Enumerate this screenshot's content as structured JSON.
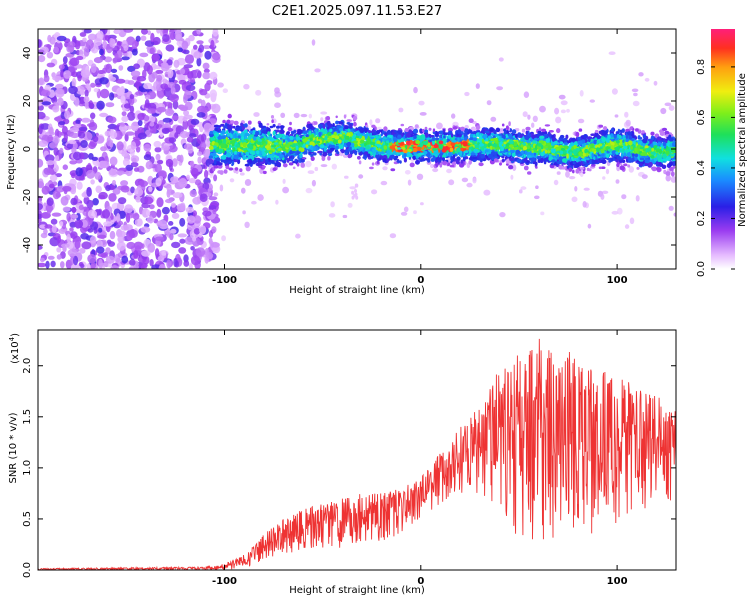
{
  "title": "C2E1.2025.097.11.53.E27",
  "chart_data": [
    {
      "type": "heatmap",
      "name": "spectrogram",
      "xlabel": "Height of straight line (km)",
      "ylabel": "Frequency (Hz)",
      "xlim": [
        -195,
        130
      ],
      "ylim": [
        -50,
        50
      ],
      "xticks": [
        -100,
        0,
        100
      ],
      "yticks": [
        -40,
        -20,
        0,
        20,
        40
      ],
      "colorbar": {
        "label": "Normalized spectral amplitude",
        "range": [
          0,
          0.95
        ],
        "ticks": [
          "0.0",
          "0.2",
          "0.4",
          "0.6",
          "0.8"
        ],
        "tick_values": [
          0,
          0.2,
          0.4,
          0.6,
          0.8
        ]
      },
      "description_regions": {
        "noise_region_x": [
          -195,
          -107
        ],
        "signal_band_center_hz": 0,
        "signal_band_halfwidth_hz": 6,
        "peak_region_x": [
          -15,
          25
        ]
      }
    },
    {
      "type": "line",
      "name": "snr",
      "xlabel": "Height of straight line (km)",
      "ylabel": "SNR (10 * v/v)",
      "yscale_label": "(x10",
      "yscale_exp": "4",
      "color": "#ee3333",
      "xlim": [
        -195,
        130
      ],
      "ylim": [
        0,
        23500
      ],
      "xticks": [
        -100,
        0,
        100
      ],
      "yticks": [
        0,
        5000,
        10000,
        15000,
        20000
      ],
      "ytick_labels": [
        "0.0",
        "0.5",
        "1.0",
        "1.5",
        "2.0"
      ],
      "envelope": {
        "x": [
          -195,
          -110,
          -100,
          -90,
          -80,
          -70,
          -60,
          -50,
          -40,
          -30,
          -20,
          -10,
          0,
          10,
          20,
          30,
          40,
          50,
          60,
          70,
          80,
          90,
          100,
          110,
          120,
          130
        ],
        "low": [
          0,
          0,
          0,
          200,
          800,
          1500,
          1800,
          2000,
          2200,
          2500,
          2800,
          3500,
          5000,
          6500,
          7500,
          7000,
          5000,
          3000,
          2500,
          2500,
          3000,
          3500,
          4000,
          5000,
          6000,
          6000
        ],
        "high": [
          150,
          300,
          600,
          1500,
          3500,
          5000,
          6000,
          6500,
          7000,
          7500,
          7500,
          8000,
          9000,
          11500,
          14000,
          16000,
          20000,
          21500,
          23000,
          22000,
          21000,
          20000,
          19000,
          18000,
          17000,
          17000
        ]
      }
    }
  ]
}
